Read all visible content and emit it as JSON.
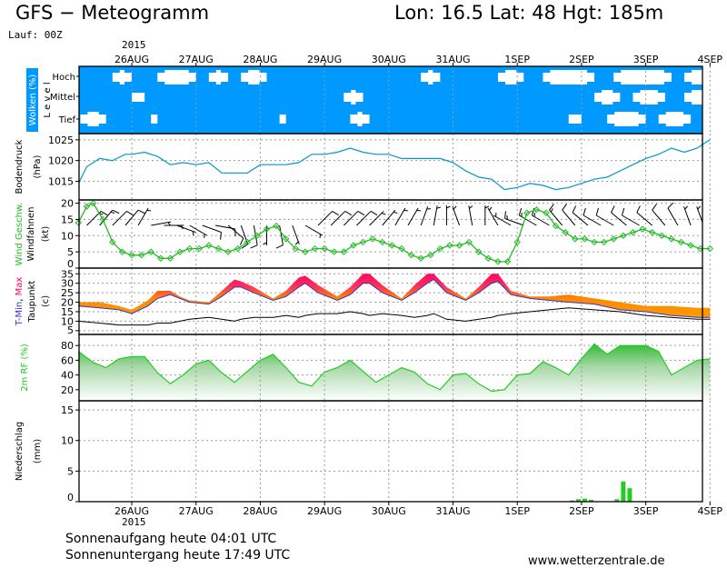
{
  "header": {
    "title": "GFS − Meteogramm",
    "location": "Lon: 16.5  Lat: 48  Hgt: 185m",
    "run": "Lauf: 00Z",
    "year": "2015"
  },
  "footer": {
    "sunrise": "Sonnenaufgang heute 04:01 UTC",
    "sunset": "Sonnenuntergang heute 17:49 UTC",
    "website": "www.wetterzentrale.de"
  },
  "colors": {
    "sky_blue": "#0099ff",
    "pressure": "#0099cc",
    "wind_green": "#22bb22",
    "humidity_green": "#22cc22",
    "precip_green": "#22cc22",
    "temp_min_blue": "#3333cc",
    "temp_max_red": "#ff0066",
    "temp_mid_orange": "#ff8800"
  },
  "chart_data": [
    {
      "type": "heatmap",
      "panel": "clouds",
      "ylabel": "Wolken (%)",
      "level_label": "L e v e l",
      "levels": [
        "Hoch",
        "Mittel",
        "Tief"
      ],
      "dates": [
        "26AUG",
        "27AUG",
        "28AUG",
        "29AUG",
        "30AUG",
        "31AUG",
        "1SEP",
        "2SEP",
        "3SEP",
        "4SEP"
      ],
      "clear_patches": {
        "Hoch": [
          [
            -0.3,
            0.0
          ],
          [
            0.4,
            1.0
          ],
          [
            1.2,
            1.5
          ],
          [
            1.7,
            2.1
          ],
          [
            4.5,
            4.8
          ],
          [
            5.7,
            6.1
          ],
          [
            6.4,
            7.2
          ],
          [
            7.5,
            8.4
          ],
          [
            8.6,
            9.0
          ]
        ],
        "Mittel": [
          [
            0.0,
            0.2
          ],
          [
            3.3,
            3.6
          ],
          [
            7.2,
            7.6
          ],
          [
            7.8,
            8.3
          ],
          [
            8.6,
            9.0
          ]
        ],
        "Tief": [
          [
            -0.8,
            -0.4
          ],
          [
            0.3,
            0.4
          ],
          [
            2.3,
            2.4
          ],
          [
            3.4,
            3.7
          ],
          [
            6.8,
            7.0
          ],
          [
            7.4,
            8.0
          ],
          [
            8.2,
            8.7
          ]
        ]
      }
    },
    {
      "type": "line",
      "panel": "pressure",
      "ylabel": "Bodendruck",
      "unit": "(hPa)",
      "yticks": [
        1015,
        1020,
        1025
      ],
      "ylim": [
        1010.5,
        1026.5
      ],
      "dates": [
        "26AUG",
        "27AUG",
        "28AUG",
        "29AUG",
        "30AUG",
        "31AUG",
        "1SEP",
        "2SEP",
        "3SEP",
        "4SEP"
      ],
      "x": [
        -0.83,
        -0.7,
        -0.5,
        -0.3,
        -0.1,
        0.0,
        0.2,
        0.4,
        0.6,
        0.8,
        1.0,
        1.2,
        1.4,
        1.6,
        1.8,
        2.0,
        2.2,
        2.4,
        2.6,
        2.8,
        3.0,
        3.2,
        3.4,
        3.6,
        3.8,
        4.0,
        4.2,
        4.4,
        4.6,
        4.8,
        5.0,
        5.2,
        5.4,
        5.6,
        5.8,
        6.0,
        6.2,
        6.4,
        6.6,
        6.8,
        7.0,
        7.2,
        7.4,
        7.6,
        7.8,
        8.0,
        8.2,
        8.4,
        8.6,
        8.8,
        9.0
      ],
      "values": [
        1014.5,
        1018.5,
        1020.5,
        1020.0,
        1021.5,
        1021.5,
        1022.0,
        1021.0,
        1019.0,
        1019.5,
        1019.0,
        1019.5,
        1017.0,
        1017.0,
        1017.0,
        1019.0,
        1019.0,
        1019.0,
        1019.5,
        1021.5,
        1021.5,
        1022.0,
        1023.0,
        1022.0,
        1021.5,
        1021.5,
        1020.5,
        1020.5,
        1020.5,
        1020.5,
        1019.5,
        1017.5,
        1016.0,
        1015.5,
        1013.0,
        1013.5,
        1014.5,
        1014.0,
        1013.0,
        1013.5,
        1014.5,
        1015.5,
        1016.0,
        1017.5,
        1019.0,
        1020.5,
        1021.5,
        1023.0,
        1022.0,
        1023.0,
        1025.0
      ]
    },
    {
      "type": "line",
      "panel": "wind",
      "ylabel": "Wind Geschw.",
      "ylabel2": "Windfahnen",
      "unit": "(kt)",
      "yticks": [
        0,
        5,
        10,
        15,
        20
      ],
      "ylim": [
        0,
        21
      ],
      "dates": [
        "26AUG",
        "27AUG",
        "28AUG",
        "29AUG",
        "30AUG",
        "31AUG",
        "1SEP",
        "2SEP",
        "3SEP",
        "4SEP"
      ],
      "x": [
        -0.83,
        -0.7,
        -0.6,
        -0.45,
        -0.3,
        -0.15,
        0.0,
        0.15,
        0.3,
        0.45,
        0.6,
        0.75,
        0.9,
        1.05,
        1.2,
        1.35,
        1.5,
        1.65,
        1.8,
        1.95,
        2.1,
        2.25,
        2.4,
        2.55,
        2.7,
        2.85,
        3.0,
        3.15,
        3.3,
        3.45,
        3.6,
        3.75,
        3.9,
        4.05,
        4.2,
        4.35,
        4.5,
        4.65,
        4.8,
        4.95,
        5.1,
        5.25,
        5.4,
        5.55,
        5.7,
        5.85,
        6.0,
        6.15,
        6.3,
        6.45,
        6.6,
        6.75,
        6.9,
        7.05,
        7.2,
        7.35,
        7.5,
        7.65,
        7.8,
        7.95,
        8.1,
        8.25,
        8.4,
        8.55,
        8.7,
        8.85,
        9.0
      ],
      "values": [
        14,
        19,
        20,
        15,
        8,
        5,
        4,
        4,
        5,
        3,
        3,
        5,
        6,
        6,
        7,
        6,
        5,
        6,
        8,
        10,
        12,
        13,
        9,
        6,
        5,
        6,
        6,
        5,
        5,
        7,
        8,
        9,
        8,
        7,
        6,
        4,
        3,
        4,
        6,
        7,
        7,
        8,
        5,
        3,
        2,
        2,
        8,
        17,
        18,
        17,
        13,
        11,
        9,
        9,
        8,
        8,
        9,
        10,
        11,
        12,
        11,
        10,
        9,
        8,
        7,
        6,
        6
      ],
      "barbs": [
        [
          -0.7,
          45,
          15
        ],
        [
          -0.5,
          40,
          15
        ],
        [
          -0.3,
          45,
          10
        ],
        [
          -0.1,
          40,
          10
        ],
        [
          0.1,
          30,
          5
        ],
        [
          0.3,
          80,
          5
        ],
        [
          0.5,
          90,
          5
        ],
        [
          0.7,
          110,
          5
        ],
        [
          0.9,
          120,
          5
        ],
        [
          1.1,
          110,
          10
        ],
        [
          1.3,
          100,
          10
        ],
        [
          1.5,
          130,
          10
        ],
        [
          1.7,
          160,
          10
        ],
        [
          1.9,
          170,
          10
        ],
        [
          2.1,
          180,
          5
        ],
        [
          2.3,
          170,
          10
        ],
        [
          2.5,
          160,
          5
        ],
        [
          2.7,
          120,
          5
        ],
        [
          2.9,
          45,
          10
        ],
        [
          3.1,
          45,
          10
        ],
        [
          3.3,
          45,
          10
        ],
        [
          3.5,
          45,
          10
        ],
        [
          3.7,
          45,
          5
        ],
        [
          3.9,
          40,
          5
        ],
        [
          4.1,
          30,
          5
        ],
        [
          4.3,
          30,
          5
        ],
        [
          4.5,
          20,
          5
        ],
        [
          4.7,
          10,
          5
        ],
        [
          4.9,
          0,
          5
        ],
        [
          5.1,
          340,
          5
        ],
        [
          5.3,
          350,
          5
        ],
        [
          5.5,
          0,
          5
        ],
        [
          5.7,
          330,
          5
        ],
        [
          5.9,
          300,
          5
        ],
        [
          6.1,
          290,
          15
        ],
        [
          6.3,
          300,
          15
        ],
        [
          6.5,
          300,
          15
        ],
        [
          6.7,
          320,
          15
        ],
        [
          6.9,
          320,
          10
        ],
        [
          7.1,
          310,
          10
        ],
        [
          7.3,
          300,
          10
        ],
        [
          7.5,
          300,
          10
        ],
        [
          7.7,
          310,
          10
        ],
        [
          7.9,
          300,
          10
        ],
        [
          8.1,
          310,
          10
        ],
        [
          8.3,
          320,
          10
        ],
        [
          8.5,
          330,
          10
        ],
        [
          8.7,
          340,
          5
        ],
        [
          8.9,
          340,
          5
        ]
      ]
    },
    {
      "type": "area",
      "panel": "temperature",
      "ylabel_parts": [
        "T-Min",
        ", ",
        "Max"
      ],
      "ylabel2": "Taupunkt",
      "unit": "(c)",
      "yticks": [
        5,
        10,
        15,
        20,
        25,
        30,
        35
      ],
      "ylim": [
        3,
        38
      ],
      "dates": [
        "26AUG",
        "27AUG",
        "28AUG",
        "29AUG",
        "30AUG",
        "31AUG",
        "1SEP",
        "2SEP",
        "3SEP",
        "4SEP"
      ],
      "x": [
        -0.83,
        -0.5,
        -0.2,
        0.0,
        0.25,
        0.4,
        0.6,
        0.75,
        0.9,
        1.2,
        1.4,
        1.6,
        1.7,
        1.9,
        2.2,
        2.4,
        2.6,
        2.7,
        2.9,
        3.2,
        3.4,
        3.6,
        3.7,
        3.9,
        4.2,
        4.4,
        4.6,
        4.7,
        4.9,
        5.2,
        5.4,
        5.6,
        5.7,
        5.9,
        6.2,
        6.5,
        6.8,
        7.2,
        7.6,
        8.0,
        8.4,
        8.8,
        9.0
      ],
      "tmin": [
        18,
        17,
        16,
        14,
        18,
        22,
        24,
        22,
        20,
        19,
        23,
        28,
        28,
        25,
        21,
        23,
        28,
        30,
        25,
        21,
        24,
        30,
        30,
        25,
        21,
        25,
        30,
        32,
        25,
        21,
        25,
        30,
        31,
        24,
        22,
        21,
        20,
        19,
        16,
        15,
        13,
        12,
        12
      ],
      "tmax": [
        20,
        20,
        18,
        16,
        21,
        26,
        26,
        23,
        21,
        20,
        26,
        32,
        31,
        28,
        22,
        26,
        33,
        34,
        29,
        23,
        28,
        35,
        35,
        29,
        22,
        29,
        35,
        35,
        28,
        22,
        28,
        35,
        35,
        26,
        23,
        23,
        24,
        22,
        20,
        18,
        18,
        17,
        17
      ],
      "dewpoint": [
        10,
        9,
        8,
        8,
        8,
        9,
        9,
        10,
        11,
        12,
        11,
        10,
        11,
        12,
        12,
        13,
        12,
        13,
        14,
        14,
        15,
        14,
        13,
        14,
        13,
        12,
        13,
        14,
        11,
        10,
        11,
        12,
        13,
        14,
        15,
        16,
        17,
        16,
        15,
        13,
        12,
        11,
        11
      ]
    },
    {
      "type": "area",
      "panel": "humidity",
      "ylabel": "2m RF (%)",
      "yticks": [
        20,
        40,
        60,
        80
      ],
      "ylim": [
        5,
        95
      ],
      "dates": [
        "26AUG",
        "27AUG",
        "28AUG",
        "29AUG",
        "30AUG",
        "31AUG",
        "1SEP",
        "2SEP",
        "3SEP",
        "4SEP"
      ],
      "x": [
        -0.83,
        -0.6,
        -0.4,
        -0.2,
        0.0,
        0.2,
        0.4,
        0.6,
        0.8,
        1.0,
        1.2,
        1.4,
        1.6,
        1.8,
        2.0,
        2.2,
        2.4,
        2.6,
        2.8,
        3.0,
        3.2,
        3.4,
        3.6,
        3.8,
        4.0,
        4.2,
        4.4,
        4.6,
        4.8,
        5.0,
        5.2,
        5.4,
        5.6,
        5.8,
        6.0,
        6.2,
        6.4,
        6.6,
        6.8,
        7.0,
        7.2,
        7.4,
        7.6,
        7.8,
        8.0,
        8.2,
        8.4,
        8.6,
        8.8,
        9.0
      ],
      "values": [
        72,
        57,
        50,
        62,
        65,
        65,
        43,
        28,
        40,
        55,
        60,
        43,
        30,
        45,
        60,
        68,
        50,
        30,
        25,
        44,
        50,
        60,
        45,
        30,
        40,
        50,
        44,
        28,
        20,
        40,
        42,
        28,
        18,
        20,
        40,
        42,
        58,
        50,
        40,
        62,
        82,
        68,
        80,
        80,
        80,
        72,
        40,
        50,
        60,
        62
      ]
    },
    {
      "type": "bar",
      "panel": "precipitation",
      "ylabel": "Niederschlag",
      "unit": "(mm)",
      "yticks": [
        0,
        5,
        10,
        15
      ],
      "ylim": [
        0,
        16.5
      ],
      "dates": [
        "26AUG",
        "27AUG",
        "28AUG",
        "29AUG",
        "30AUG",
        "31AUG",
        "1SEP",
        "2SEP",
        "3SEP",
        "4SEP"
      ],
      "x": [
        6.85,
        6.95,
        7.05,
        7.15,
        7.55,
        7.65,
        7.75
      ],
      "values": [
        0.2,
        0.4,
        0.5,
        0.3,
        0.4,
        3.3,
        2.2
      ]
    }
  ]
}
